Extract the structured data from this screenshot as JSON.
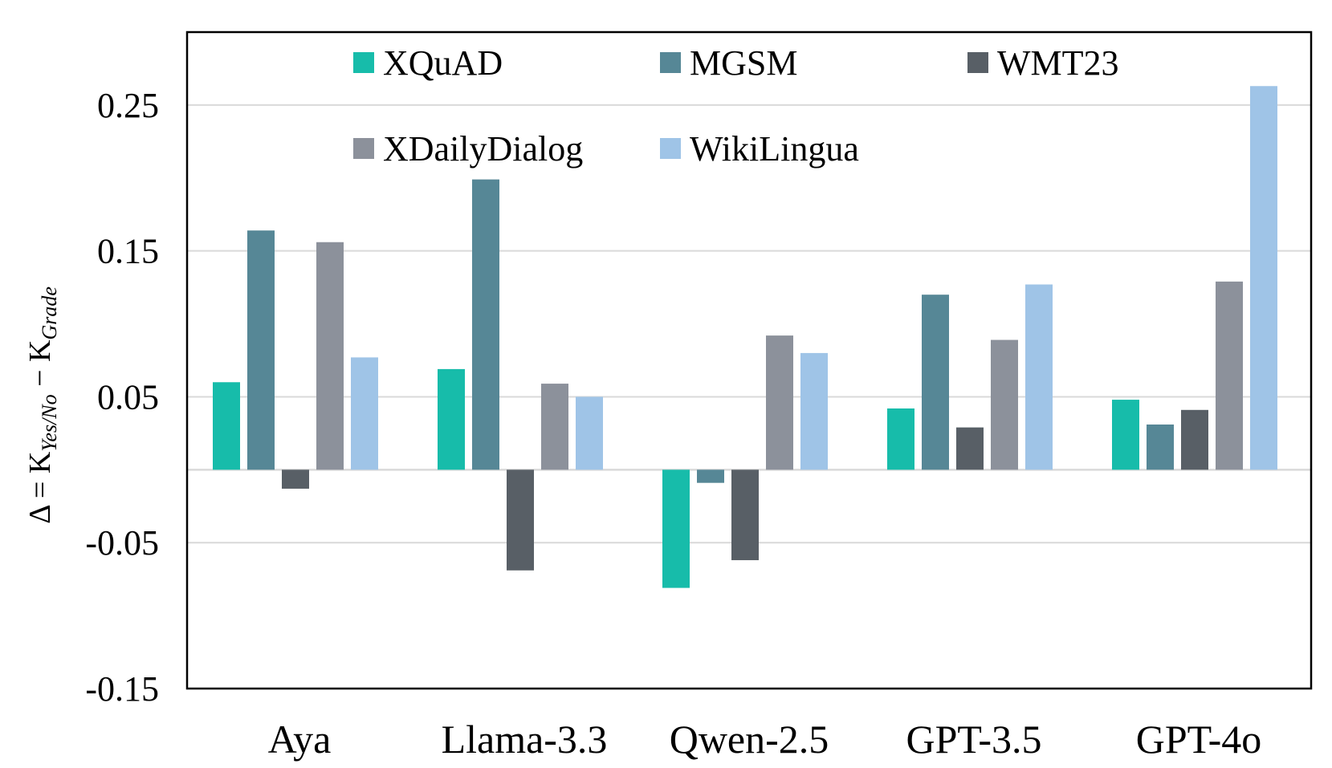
{
  "chart_data": {
    "type": "bar",
    "title": "",
    "xlabel": "",
    "ylabel": {
      "prefix": "Δ = K",
      "sub1": "Yes/No",
      "minus": " − K",
      "sub2": "Grade"
    },
    "ylim": [
      -0.15,
      0.3
    ],
    "yticks": [
      0.25,
      0.15,
      0.05,
      -0.05,
      -0.15
    ],
    "ytick_labels": [
      "0.25",
      "0.15",
      "0.05",
      "-0.05",
      "-0.15"
    ],
    "grid": true,
    "legend_position": "top",
    "categories": [
      "Aya",
      "Llama-3.3",
      "Qwen-2.5",
      "GPT-3.5",
      "GPT-4o"
    ],
    "series": [
      {
        "name": "XQuAD",
        "color": "#17bcaa",
        "values": [
          0.06,
          0.069,
          -0.081,
          0.042,
          0.048
        ]
      },
      {
        "name": "MGSM",
        "color": "#568796",
        "values": [
          0.164,
          0.199,
          -0.009,
          0.12,
          0.031
        ]
      },
      {
        "name": "WMT23",
        "color": "#585f66",
        "values": [
          -0.013,
          -0.069,
          -0.062,
          0.029,
          0.041
        ]
      },
      {
        "name": "XDailyDialog",
        "color": "#8c919b",
        "values": [
          0.156,
          0.059,
          0.092,
          0.089,
          0.129
        ]
      },
      {
        "name": "WikiLingua",
        "color": "#9fc4e7",
        "values": [
          0.077,
          0.05,
          0.08,
          0.127,
          0.263
        ]
      }
    ]
  }
}
